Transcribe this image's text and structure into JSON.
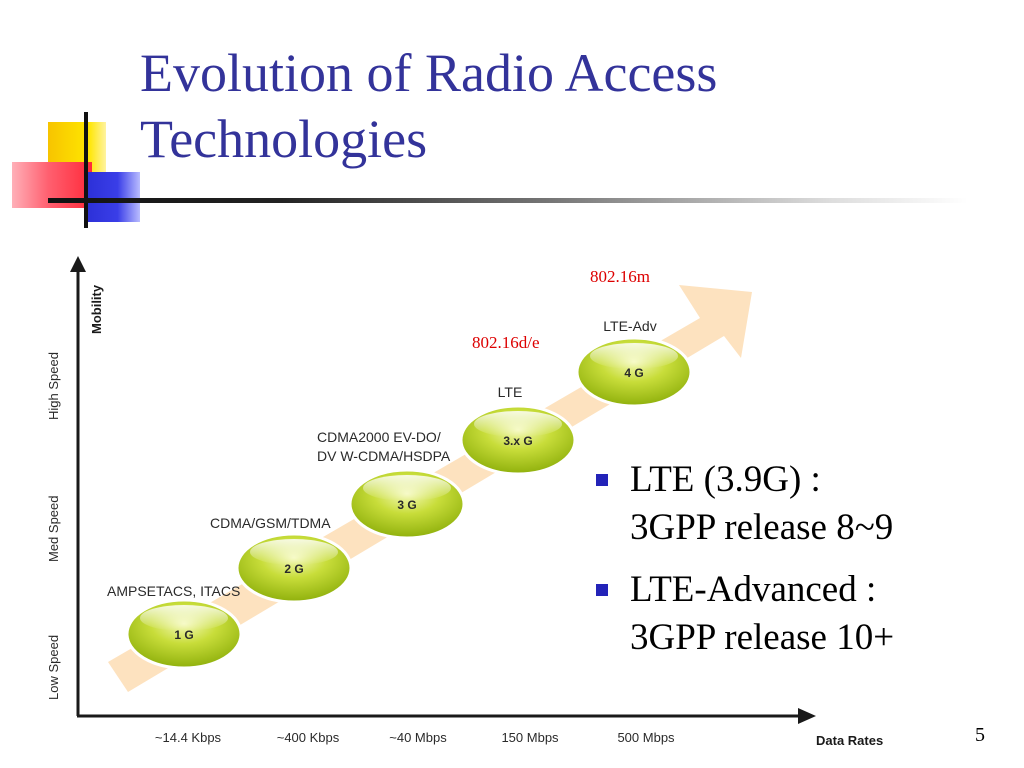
{
  "slide": {
    "title_line1": "Evolution of Radio Access",
    "title_line2": "Technologies",
    "page_number": "5"
  },
  "diagram": {
    "y_axis_title": "Mobility",
    "x_axis_title": "Data Rates",
    "y_levels": [
      "Low Speed",
      "Med Speed",
      "High Speed"
    ],
    "x_ticks": [
      "~14.4 Kbps",
      "~400 Kbps",
      "~40 Mbps",
      "150 Mbps",
      "500 Mbps"
    ],
    "generations": [
      {
        "badge": "1 G",
        "label": "AMPSETACS, ITACS"
      },
      {
        "badge": "2 G",
        "label": "CDMA/GSM/TDMA"
      },
      {
        "badge": "3 G",
        "label_line1": "CDMA2000 EV-DO/",
        "label_line2": "DV W-CDMA/HSDPA"
      },
      {
        "badge": "3.x G",
        "label": "LTE"
      },
      {
        "badge": "4 G",
        "label": "LTE-Adv"
      }
    ],
    "wimax_labels": [
      "802.16d/e",
      "802.16m"
    ],
    "colors": {
      "arrow": "#fde2bf",
      "badge": "#b7d21c",
      "wimax_text": "#dd0000",
      "axis": "#1a1a1a"
    }
  },
  "bullets": [
    {
      "line1": "LTE (3.9G) :",
      "line2": "3GPP release 8~9"
    },
    {
      "line1": "LTE-Advanced :",
      "line2": "3GPP release 10+"
    }
  ]
}
